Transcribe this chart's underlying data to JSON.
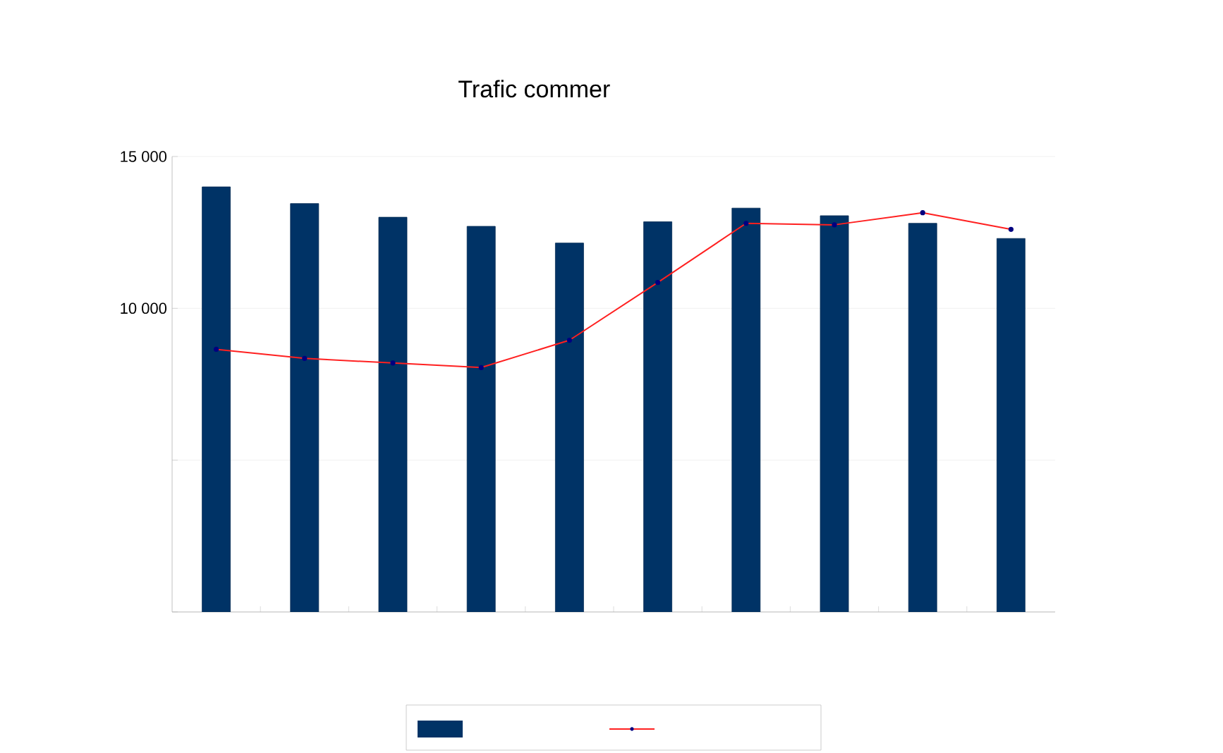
{
  "chart_data": {
    "type": "bar",
    "title": "Trafic commer",
    "categories": [
      null,
      null,
      null,
      null,
      null,
      null,
      null,
      null,
      null,
      null
    ],
    "series": [
      {
        "type": "bar",
        "color": "#003366",
        "values": [
          14000,
          13450,
          13000,
          12700,
          12150,
          12850,
          13300,
          13050,
          12800,
          12300
        ]
      },
      {
        "type": "line",
        "color": "#ff2020",
        "marker": "circle",
        "values": [
          8650,
          8350,
          8200,
          8050,
          8950,
          10850,
          12800,
          12750,
          13150,
          12600
        ]
      }
    ],
    "ylim": [
      0,
      15000
    ],
    "yticks": [
      {
        "value": 0,
        "label": null
      },
      {
        "value": 5000,
        "label": null
      },
      {
        "value": 10000,
        "label": "10 000"
      },
      {
        "value": 15000,
        "label": "15 000"
      }
    ],
    "tick_labels": "y",
    "grid": "y"
  }
}
